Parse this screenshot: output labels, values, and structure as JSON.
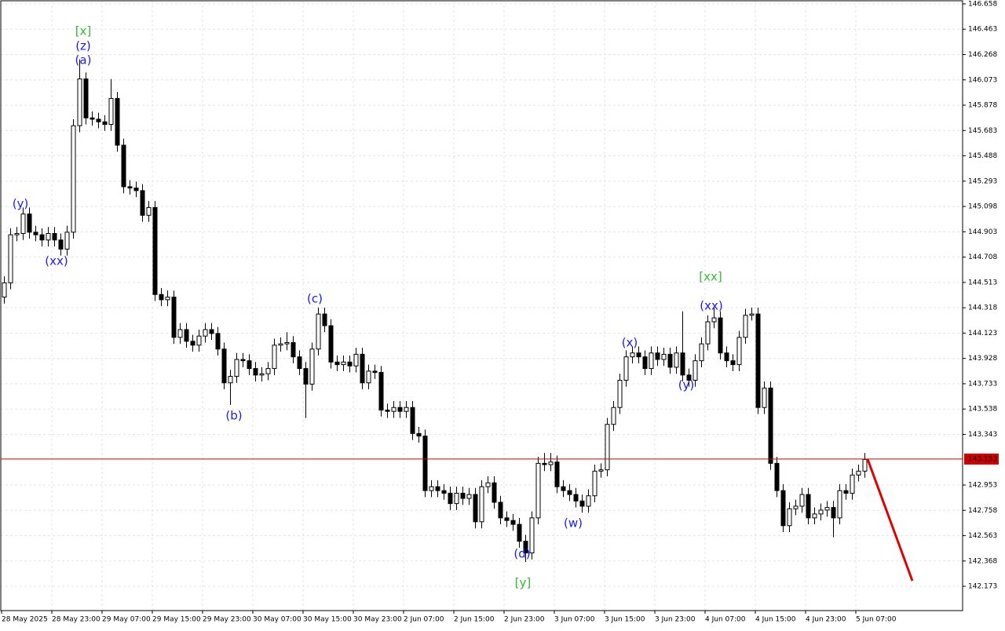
{
  "chart_data": {
    "type": "candlestick",
    "grid": true,
    "up_color": "#ffffff",
    "down_color": "#000000",
    "edge_color": "#000000",
    "price_line": 143.153,
    "price_line_color": "#cc0000",
    "ylim": [
      141.986,
      146.688
    ],
    "yticks": [
      146.658,
      146.463,
      146.268,
      146.073,
      145.878,
      145.683,
      145.488,
      145.293,
      145.098,
      144.903,
      144.708,
      144.513,
      144.318,
      144.123,
      143.928,
      143.733,
      143.538,
      143.343,
      142.953,
      142.758,
      142.563,
      142.368,
      142.173
    ],
    "categories": [
      "28 May 2025",
      null,
      null,
      null,
      null,
      null,
      null,
      null,
      "28 May 23:00",
      null,
      null,
      null,
      null,
      null,
      null,
      null,
      "29 May 07:00",
      null,
      null,
      null,
      null,
      null,
      null,
      null,
      "29 May 15:00",
      null,
      null,
      null,
      null,
      null,
      null,
      null,
      "29 May 23:00",
      null,
      null,
      null,
      null,
      null,
      null,
      null,
      "30 May 07:00",
      null,
      null,
      null,
      null,
      null,
      null,
      null,
      "30 May 15:00",
      null,
      null,
      null,
      null,
      null,
      null,
      null,
      "30 May 23:00",
      null,
      null,
      null,
      null,
      null,
      null,
      null,
      "2 Jun 07:00",
      null,
      null,
      null,
      null,
      null,
      null,
      null,
      "2 Jun 15:00",
      null,
      null,
      null,
      null,
      null,
      null,
      null,
      "2 Jun 23:00",
      null,
      null,
      null,
      null,
      null,
      null,
      null,
      "3 Jun 07:00",
      null,
      null,
      null,
      null,
      null,
      null,
      null,
      "3 Jun 15:00",
      null,
      null,
      null,
      null,
      null,
      null,
      null,
      "3 Jun 23:00",
      null,
      null,
      null,
      null,
      null,
      null,
      null,
      "4 Jun 07:00",
      null,
      null,
      null,
      null,
      null,
      null,
      null,
      "4 Jun 15:00",
      null,
      null,
      null,
      null,
      null,
      null,
      null,
      "4 Jun 23:00",
      null,
      null,
      null,
      null,
      null,
      null,
      null,
      "5 Jun 07:00",
      null
    ],
    "candles": [
      [
        144.4,
        144.56,
        144.35,
        144.51
      ],
      [
        144.51,
        144.93,
        144.46,
        144.88
      ],
      [
        144.88,
        144.94,
        144.83,
        144.89
      ],
      [
        144.89,
        145.09,
        144.84,
        145.04
      ],
      [
        145.04,
        145.09,
        144.85,
        144.9
      ],
      [
        144.9,
        144.95,
        144.83,
        144.88
      ],
      [
        144.88,
        144.93,
        144.79,
        144.84
      ],
      [
        144.84,
        144.94,
        144.79,
        144.89
      ],
      [
        144.89,
        144.94,
        144.79,
        144.84
      ],
      [
        144.84,
        144.89,
        144.72,
        144.77
      ],
      [
        144.77,
        144.95,
        144.72,
        144.9
      ],
      [
        144.9,
        145.77,
        144.85,
        145.72
      ],
      [
        145.72,
        146.23,
        145.67,
        146.08
      ],
      [
        146.08,
        146.13,
        145.73,
        145.78
      ],
      [
        145.78,
        145.83,
        145.72,
        145.77
      ],
      [
        145.77,
        145.82,
        145.7,
        145.75
      ],
      [
        145.75,
        145.8,
        145.68,
        145.73
      ],
      [
        145.73,
        146.08,
        145.68,
        145.93
      ],
      [
        145.93,
        145.98,
        145.52,
        145.57
      ],
      [
        145.57,
        145.62,
        145.2,
        145.25
      ],
      [
        145.25,
        145.3,
        145.19,
        145.24
      ],
      [
        145.24,
        145.29,
        145.17,
        145.22
      ],
      [
        145.22,
        145.27,
        144.98,
        145.03
      ],
      [
        145.03,
        145.14,
        144.98,
        145.09
      ],
      [
        145.09,
        145.14,
        144.37,
        144.42
      ],
      [
        144.42,
        144.47,
        144.33,
        144.38
      ],
      [
        144.38,
        144.45,
        144.33,
        144.4
      ],
      [
        144.4,
        144.45,
        144.04,
        144.09
      ],
      [
        144.09,
        144.2,
        144.04,
        144.15
      ],
      [
        144.15,
        144.2,
        144.01,
        144.06
      ],
      [
        144.06,
        144.11,
        143.98,
        144.03
      ],
      [
        144.03,
        144.15,
        143.98,
        144.1
      ],
      [
        144.1,
        144.2,
        144.05,
        144.15
      ],
      [
        144.15,
        144.2,
        144.07,
        144.12
      ],
      [
        144.12,
        144.17,
        143.95,
        144.0
      ],
      [
        144.0,
        144.05,
        143.69,
        143.74
      ],
      [
        143.74,
        143.84,
        143.57,
        143.79
      ],
      [
        143.79,
        143.97,
        143.74,
        143.92
      ],
      [
        143.92,
        143.97,
        143.86,
        143.91
      ],
      [
        143.91,
        143.96,
        143.8,
        143.85
      ],
      [
        143.85,
        143.9,
        143.75,
        143.8
      ],
      [
        143.8,
        143.86,
        143.75,
        143.81
      ],
      [
        143.81,
        143.9,
        143.76,
        143.85
      ],
      [
        143.85,
        144.08,
        143.8,
        144.03
      ],
      [
        144.03,
        144.09,
        143.98,
        144.04
      ],
      [
        144.04,
        144.13,
        143.99,
        144.05
      ],
      [
        144.05,
        144.1,
        143.89,
        143.94
      ],
      [
        143.94,
        143.99,
        143.8,
        143.85
      ],
      [
        143.85,
        143.9,
        143.47,
        143.73
      ],
      [
        143.73,
        144.05,
        143.68,
        144.0
      ],
      [
        144.0,
        144.32,
        143.95,
        144.27
      ],
      [
        144.27,
        144.32,
        144.13,
        144.18
      ],
      [
        144.18,
        144.23,
        143.85,
        143.9
      ],
      [
        143.9,
        143.95,
        143.83,
        143.88
      ],
      [
        143.88,
        143.95,
        143.83,
        143.9
      ],
      [
        143.9,
        143.95,
        143.82,
        143.87
      ],
      [
        143.87,
        144.01,
        143.82,
        143.96
      ],
      [
        143.96,
        144.01,
        143.69,
        143.74
      ],
      [
        143.74,
        143.88,
        143.69,
        143.83
      ],
      [
        143.83,
        143.88,
        143.77,
        143.82
      ],
      [
        143.82,
        143.87,
        143.48,
        143.53
      ],
      [
        143.53,
        143.58,
        143.47,
        143.52
      ],
      [
        143.52,
        143.6,
        143.47,
        143.55
      ],
      [
        143.55,
        143.6,
        143.47,
        143.52
      ],
      [
        143.52,
        143.6,
        143.47,
        143.55
      ],
      [
        143.55,
        143.6,
        143.3,
        143.35
      ],
      [
        143.35,
        143.4,
        143.28,
        143.33
      ],
      [
        143.33,
        143.38,
        142.86,
        142.91
      ],
      [
        142.91,
        142.99,
        142.86,
        142.94
      ],
      [
        142.94,
        142.99,
        142.86,
        142.91
      ],
      [
        142.91,
        142.96,
        142.84,
        142.89
      ],
      [
        142.89,
        142.94,
        142.76,
        142.81
      ],
      [
        142.81,
        142.94,
        142.76,
        142.89
      ],
      [
        142.89,
        142.94,
        142.8,
        142.85
      ],
      [
        142.85,
        142.93,
        142.8,
        142.88
      ],
      [
        142.88,
        142.93,
        142.62,
        142.67
      ],
      [
        142.67,
        142.99,
        142.62,
        142.94
      ],
      [
        142.94,
        143.02,
        142.89,
        142.97
      ],
      [
        142.97,
        143.02,
        142.77,
        142.82
      ],
      [
        142.82,
        142.87,
        142.65,
        142.7
      ],
      [
        142.7,
        142.75,
        142.63,
        142.68
      ],
      [
        142.68,
        142.73,
        142.6,
        142.65
      ],
      [
        142.65,
        142.7,
        142.47,
        142.52
      ],
      [
        142.52,
        142.57,
        142.36,
        142.43
      ],
      [
        142.43,
        142.75,
        142.38,
        142.7
      ],
      [
        142.7,
        143.17,
        142.65,
        143.12
      ],
      [
        143.12,
        143.2,
        143.06,
        143.11
      ],
      [
        143.11,
        143.2,
        143.06,
        143.13
      ],
      [
        143.13,
        143.18,
        142.89,
        142.94
      ],
      [
        142.94,
        142.99,
        142.86,
        142.91
      ],
      [
        142.91,
        142.96,
        142.83,
        142.88
      ],
      [
        142.88,
        142.93,
        142.78,
        142.83
      ],
      [
        142.83,
        142.88,
        142.74,
        142.79
      ],
      [
        142.79,
        142.92,
        142.74,
        142.87
      ],
      [
        142.87,
        143.11,
        142.82,
        143.06
      ],
      [
        143.06,
        143.12,
        143.01,
        143.07
      ],
      [
        143.07,
        143.47,
        143.02,
        143.42
      ],
      [
        143.42,
        143.6,
        143.37,
        143.55
      ],
      [
        143.55,
        143.81,
        143.5,
        143.76
      ],
      [
        143.76,
        143.99,
        143.71,
        143.94
      ],
      [
        143.94,
        144.02,
        143.89,
        143.97
      ],
      [
        143.97,
        144.02,
        143.89,
        143.94
      ],
      [
        143.94,
        143.99,
        143.8,
        143.85
      ],
      [
        143.85,
        144.02,
        143.8,
        143.97
      ],
      [
        143.97,
        144.02,
        143.87,
        143.92
      ],
      [
        143.92,
        144.01,
        143.87,
        143.96
      ],
      [
        143.96,
        144.01,
        143.81,
        143.86
      ],
      [
        143.86,
        144.02,
        143.81,
        143.97
      ],
      [
        143.97,
        144.29,
        143.75,
        143.8
      ],
      [
        143.8,
        143.85,
        143.71,
        143.76
      ],
      [
        143.76,
        143.96,
        143.71,
        143.91
      ],
      [
        143.91,
        144.09,
        143.86,
        144.04
      ],
      [
        144.04,
        144.26,
        143.99,
        144.21
      ],
      [
        144.21,
        144.32,
        144.16,
        144.24
      ],
      [
        144.24,
        144.29,
        143.92,
        143.97
      ],
      [
        143.97,
        144.02,
        143.86,
        143.91
      ],
      [
        143.91,
        143.96,
        143.83,
        143.88
      ],
      [
        143.88,
        144.14,
        143.83,
        144.09
      ],
      [
        144.09,
        144.31,
        144.04,
        144.26
      ],
      [
        144.26,
        144.32,
        144.22,
        144.27
      ],
      [
        144.27,
        144.32,
        143.5,
        143.55
      ],
      [
        143.55,
        143.75,
        143.5,
        143.7
      ],
      [
        143.7,
        143.75,
        143.07,
        143.12
      ],
      [
        143.12,
        143.17,
        142.86,
        142.91
      ],
      [
        142.91,
        142.96,
        142.59,
        142.64
      ],
      [
        142.64,
        142.82,
        142.59,
        142.77
      ],
      [
        142.77,
        142.84,
        142.72,
        142.79
      ],
      [
        142.79,
        142.93,
        142.74,
        142.88
      ],
      [
        142.88,
        142.93,
        142.65,
        142.7
      ],
      [
        142.7,
        142.78,
        142.65,
        142.73
      ],
      [
        142.73,
        142.81,
        142.68,
        142.76
      ],
      [
        142.76,
        142.83,
        142.71,
        142.78
      ],
      [
        142.78,
        142.83,
        142.55,
        142.7
      ],
      [
        142.7,
        142.96,
        142.65,
        142.91
      ],
      [
        142.91,
        142.96,
        142.84,
        142.89
      ],
      [
        142.89,
        143.08,
        142.84,
        143.03
      ],
      [
        143.03,
        143.11,
        142.98,
        143.06
      ],
      [
        143.06,
        143.2,
        143.01,
        143.15
      ]
    ],
    "wave_labels": [
      {
        "text": "(y)",
        "color": "#1a1aff"
      },
      {
        "text": "(xx)",
        "color": "#1a1aff"
      },
      {
        "text": "[x]",
        "color": "#33bb33"
      },
      {
        "text": "(z)",
        "color": "#1a1aff"
      },
      {
        "text": "(a)",
        "color": "#1a1aff"
      },
      {
        "text": "(b)",
        "color": "#1a1aff"
      },
      {
        "text": "(c)",
        "color": "#1a1aff"
      },
      {
        "text": "(d)",
        "color": "#1a1aff"
      },
      {
        "text": "[y]",
        "color": "#33bb33"
      },
      {
        "text": "(w)",
        "color": "#1a1aff"
      },
      {
        "text": "(x)",
        "color": "#1a1aff"
      },
      {
        "text": "(y)",
        "color": "#1a1aff"
      },
      {
        "text": "[xx]",
        "color": "#33bb33"
      },
      {
        "text": "(xx)",
        "color": "#1a1aff"
      }
    ]
  }
}
